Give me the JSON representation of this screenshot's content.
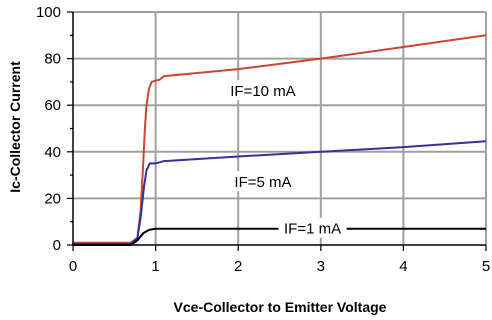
{
  "chart_data": {
    "type": "line",
    "title": "",
    "xlabel": "Vce-Collector to Emitter Voltage",
    "ylabel": "Ic-Collector Current",
    "xlim": [
      0,
      5
    ],
    "ylim": [
      0,
      100
    ],
    "xticks": [
      0,
      1,
      2,
      3,
      4,
      5
    ],
    "yticks": [
      0,
      20,
      40,
      60,
      80,
      100
    ],
    "x_tick_labels": [
      "0",
      "1",
      "2",
      "3",
      "4",
      "5"
    ],
    "y_tick_labels": [
      "0",
      "20",
      "40",
      "60",
      "80",
      "100"
    ],
    "grid": true,
    "legend": "none",
    "series": [
      {
        "name": "IF=10 mA",
        "color": "#cc4433",
        "points": [
          [
            0,
            1
          ],
          [
            0.7,
            1
          ],
          [
            0.78,
            3
          ],
          [
            0.82,
            15
          ],
          [
            0.85,
            35
          ],
          [
            0.87,
            50
          ],
          [
            0.89,
            60
          ],
          [
            0.92,
            67
          ],
          [
            0.95,
            70
          ],
          [
            1.0,
            70.5
          ],
          [
            1.05,
            71
          ],
          [
            1.1,
            72.5
          ],
          [
            2.0,
            75.5
          ],
          [
            3.0,
            80
          ],
          [
            4.0,
            85
          ],
          [
            5.0,
            90
          ]
        ]
      },
      {
        "name": "IF=5 mA",
        "color": "#333399",
        "points": [
          [
            0,
            0.5
          ],
          [
            0.7,
            0.5
          ],
          [
            0.78,
            3
          ],
          [
            0.82,
            12
          ],
          [
            0.86,
            25
          ],
          [
            0.89,
            32
          ],
          [
            0.93,
            35
          ],
          [
            1.0,
            35
          ],
          [
            1.05,
            35.5
          ],
          [
            1.1,
            36
          ],
          [
            2.0,
            38
          ],
          [
            3.0,
            40
          ],
          [
            4.0,
            42
          ],
          [
            5.0,
            44.5
          ]
        ]
      },
      {
        "name": "IF=1 mA",
        "color": "#000000",
        "points": [
          [
            0,
            0
          ],
          [
            0.7,
            0
          ],
          [
            0.78,
            2
          ],
          [
            0.85,
            5
          ],
          [
            0.92,
            6.5
          ],
          [
            1.0,
            7
          ],
          [
            2.0,
            7
          ],
          [
            3.0,
            7
          ],
          [
            4.0,
            7
          ],
          [
            5.0,
            7
          ]
        ]
      }
    ],
    "annotations": [
      {
        "text": "IF=10 mA",
        "x": 2.3,
        "y": 66
      },
      {
        "text": "IF=5 mA",
        "x": 2.3,
        "y": 27
      },
      {
        "text": "IF=1 mA",
        "x": 2.9,
        "y": 7
      }
    ]
  }
}
